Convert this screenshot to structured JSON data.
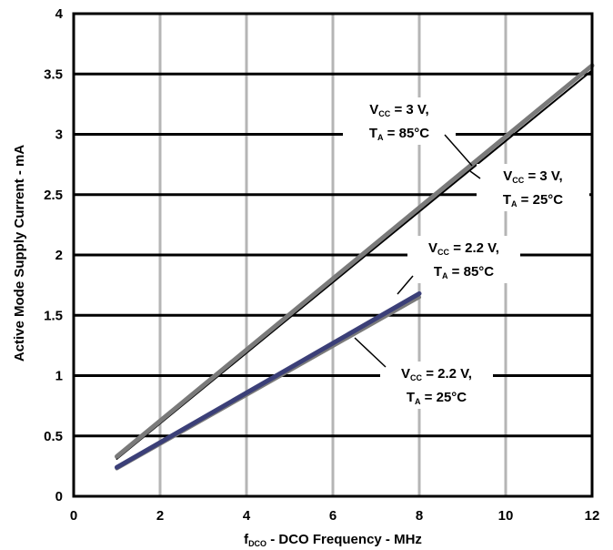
{
  "chart_data": {
    "type": "line",
    "xlabel": {
      "main": "f",
      "sub": "DCO",
      "rest": " - DCO Frequency - MHz"
    },
    "ylabel": "Active Mode Supply Current - mA",
    "xlim": [
      0,
      12
    ],
    "ylim": [
      0,
      4
    ],
    "x_ticks": [
      "0",
      "2",
      "4",
      "6",
      "8",
      "10",
      "12"
    ],
    "y_ticks": [
      "0",
      "0.5",
      "1",
      "1.5",
      "2",
      "2.5",
      "3",
      "3.5",
      "4"
    ],
    "grid": {
      "vertical": true,
      "horizontal": true
    },
    "series": [
      {
        "name": "Vcc = 3 V, TA = 85°C",
        "color": "#7a7a7a",
        "x": [
          1,
          12
        ],
        "y": [
          0.33,
          3.57
        ]
      },
      {
        "name": "Vcc = 3 V, TA = 25°C",
        "color": "#000000",
        "x": [
          1,
          12
        ],
        "y": [
          0.31,
          3.53
        ]
      },
      {
        "name": "Vcc = 2.2 V, TA = 85°C",
        "color": "#3b3f78",
        "x": [
          1,
          8
        ],
        "y": [
          0.24,
          1.68
        ]
      },
      {
        "name": "Vcc = 2.2 V, TA = 25°C",
        "color": "#7a7a7a",
        "x": [
          1,
          8
        ],
        "y": [
          0.23,
          1.65
        ]
      }
    ],
    "annotations": [
      {
        "line1": {
          "main": "V",
          "sub": "CC",
          "rest": " = 3 V,"
        },
        "line2": {
          "main": "T",
          "sub": "A",
          "rest": " = 85°C"
        }
      },
      {
        "line1": {
          "main": "V",
          "sub": "CC",
          "rest": " = 3 V,"
        },
        "line2": {
          "main": "T",
          "sub": "A",
          "rest": " = 25°C"
        }
      },
      {
        "line1": {
          "main": "V",
          "sub": "CC",
          "rest": " = 2.2 V,"
        },
        "line2": {
          "main": "T",
          "sub": "A",
          "rest": " = 85°C"
        }
      },
      {
        "line1": {
          "main": "V",
          "sub": "CC",
          "rest": " = 2.2 V,"
        },
        "line2": {
          "main": "T",
          "sub": "A",
          "rest": " = 25°C"
        }
      }
    ]
  }
}
